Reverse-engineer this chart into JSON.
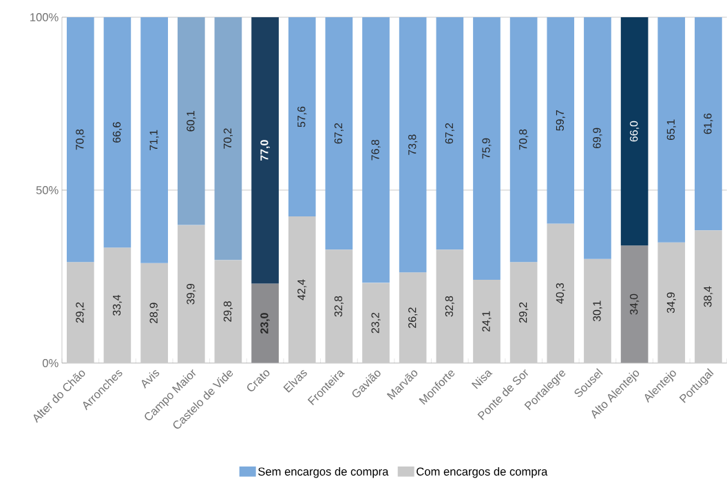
{
  "chart_data": {
    "type": "bar",
    "stacked": true,
    "categories": [
      "Alter do Chão",
      "Arronches",
      "Avis",
      "Campo Maior",
      "Castelo de Vide",
      "Crato",
      "Elvas",
      "Fronteira",
      "Gavião",
      "Marvão",
      "Monforte",
      "Nisa",
      "Ponte de Sor",
      "Portalegre",
      "Sousel",
      "Alto Alentejo",
      "Alentejo",
      "Portugal"
    ],
    "series": [
      {
        "name": "Com encargos de compra",
        "color": "#c9c9c9",
        "colors": [
          "#c9c9c9",
          "#c9c9c9",
          "#c9c9c9",
          "#c9c9c9",
          "#c9c9c9",
          "#8c8c8f",
          "#c9c9c9",
          "#c9c9c9",
          "#c9c9c9",
          "#c9c9c9",
          "#c9c9c9",
          "#c9c9c9",
          "#c9c9c9",
          "#c9c9c9",
          "#c9c9c9",
          "#949497",
          "#c9c9c9",
          "#c9c9c9"
        ],
        "values": [
          29.2,
          33.4,
          28.9,
          39.9,
          29.8,
          23.0,
          42.4,
          32.8,
          23.2,
          26.2,
          32.8,
          24.1,
          29.2,
          40.3,
          30.1,
          34.0,
          34.9,
          38.4
        ],
        "value_labels": [
          "29,2",
          "33,4",
          "28,9",
          "39,9",
          "29,8",
          "**23,0**",
          "42,4",
          "32,8",
          "23,2",
          "26,2",
          "32,8",
          "24,1",
          "29,2",
          "40,3",
          "30,1",
          "34,0",
          "34,9",
          "38,4"
        ]
      },
      {
        "name": "Sem encargos de compra",
        "color": "#7baadc",
        "colors": [
          "#7baadc",
          "#7baadc",
          "#7baadc",
          "#84a9cd",
          "#84a9cd",
          "#1b3f60",
          "#7baadc",
          "#7baadc",
          "#7baadc",
          "#7baadc",
          "#7baadc",
          "#7baadc",
          "#7baadc",
          "#7baadc",
          "#7baadc",
          "#0c3a5e",
          "#7baadc",
          "#7baadc"
        ],
        "values": [
          70.8,
          66.6,
          71.1,
          60.1,
          70.2,
          77.0,
          57.6,
          67.2,
          76.8,
          73.8,
          67.2,
          75.9,
          70.8,
          59.7,
          69.9,
          66.0,
          65.1,
          61.6
        ],
        "value_labels": [
          "70,8",
          "66,6",
          "71,1",
          "60,1",
          "70,2",
          "**77,0**",
          "57,6",
          "67,2",
          "76,8",
          "73,8",
          "67,2",
          "75,9",
          "70,8",
          "59,7",
          "69,9",
          "66,0",
          "65,1",
          "61,6"
        ]
      }
    ],
    "ylim": [
      0,
      100
    ],
    "yticks": [
      {
        "value": 0,
        "label": "0%"
      },
      {
        "value": 50,
        "label": "50%"
      },
      {
        "value": 100,
        "label": "100%"
      }
    ],
    "grid": "y",
    "legend": "bottom"
  }
}
